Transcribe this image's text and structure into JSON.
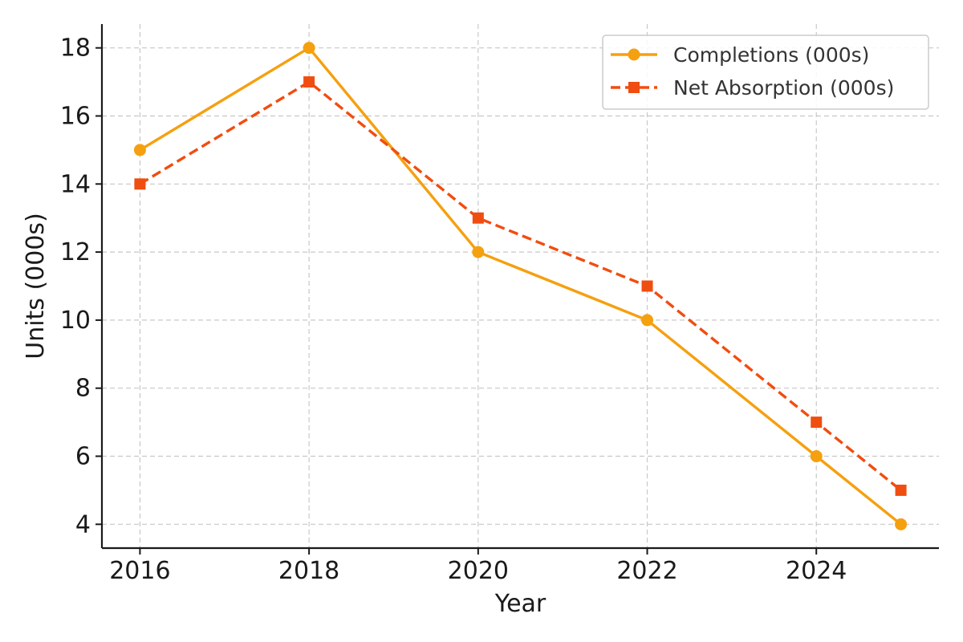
{
  "chart_data": {
    "type": "line",
    "title": "",
    "xlabel": "Year",
    "ylabel": "Units (000s)",
    "x": [
      2016,
      2018,
      2020,
      2022,
      2024,
      2025
    ],
    "xticks": [
      2016,
      2018,
      2020,
      2022,
      2024
    ],
    "yticks": [
      4,
      6,
      8,
      10,
      12,
      14,
      16,
      18
    ],
    "xlim": [
      2015.55,
      2025.45
    ],
    "ylim": [
      3.3,
      18.7
    ],
    "grid": true,
    "legend_position": "top-right",
    "series": [
      {
        "name": "Completions (000s)",
        "values": [
          15,
          18,
          12,
          10,
          6,
          4
        ],
        "color": "#f5a00f",
        "line_style": "solid",
        "marker": "circle"
      },
      {
        "name": "Net Absorption (000s)",
        "values": [
          14,
          17,
          13,
          11,
          7,
          5
        ],
        "color": "#f04d10",
        "line_style": "dashed",
        "marker": "square"
      }
    ]
  }
}
